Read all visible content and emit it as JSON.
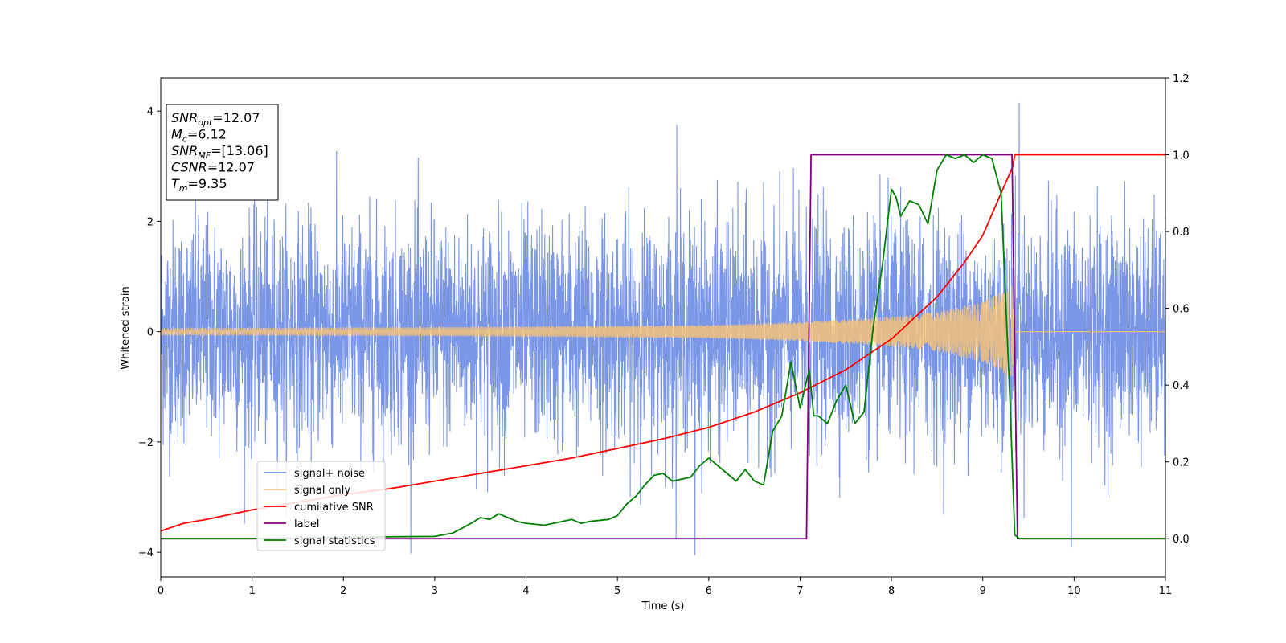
{
  "chart_data": {
    "type": "line",
    "xlabel": "Time (s)",
    "ylabel_left": "Whitened strain",
    "ylabel_right": "",
    "xlim": [
      0,
      11
    ],
    "ylim_left": [
      -4.45,
      4.6
    ],
    "ylim_right": [
      -0.1,
      1.2
    ],
    "x_ticks": [
      0,
      1,
      2,
      3,
      4,
      5,
      6,
      7,
      8,
      9,
      10,
      11
    ],
    "y_ticks_left": [
      -4,
      -2,
      0,
      2,
      4
    ],
    "y_ticks_right": [
      0.0,
      0.2,
      0.4,
      0.6,
      0.8,
      1.0,
      1.2
    ],
    "grid": false,
    "legend_position": "lower-left",
    "annotation_box": {
      "position": "top-left",
      "lines": [
        {
          "symbol": "SNR",
          "sub": "opt",
          "value": "=12.07"
        },
        {
          "symbol": "M",
          "sub": "c",
          "value": "=6.12"
        },
        {
          "symbol": "SNR",
          "sub": "MF",
          "value": "=[13.06]"
        },
        {
          "symbol": "CSNR",
          "sub": "",
          "value": "=12.07"
        },
        {
          "symbol": "T",
          "sub": "m",
          "value": "=9.35"
        }
      ]
    },
    "series": [
      {
        "name": "signal+ noise",
        "color": "#7390e6",
        "axis": "left",
        "kind": "noise",
        "std": 1.0,
        "peak_values": [
          {
            "x": 5.65,
            "y": 3.75
          },
          {
            "x": 5.85,
            "y": -4.05
          },
          {
            "x": 9.4,
            "y": 4.15
          },
          {
            "x": 9.97,
            "y": -3.9
          }
        ]
      },
      {
        "name": "signal only",
        "color": "#f5c27a",
        "axis": "left",
        "kind": "chirp",
        "amplitude_envelope": [
          [
            0,
            0.06
          ],
          [
            3,
            0.08
          ],
          [
            6,
            0.12
          ],
          [
            7,
            0.17
          ],
          [
            8,
            0.27
          ],
          [
            8.5,
            0.36
          ],
          [
            9,
            0.55
          ],
          [
            9.35,
            0.85
          ]
        ],
        "end_time": 9.35
      },
      {
        "name": "cumilative SNR",
        "color": "#ff0000",
        "axis": "right",
        "x": [
          0,
          0.25,
          0.5,
          1,
          1.5,
          2,
          2.5,
          3,
          3.5,
          4,
          4.5,
          5,
          5.5,
          6,
          6.5,
          7,
          7.5,
          8,
          8.5,
          8.8,
          9.0,
          9.2,
          9.33,
          9.35,
          11
        ],
        "y": [
          0.02,
          0.04,
          0.05,
          0.075,
          0.095,
          0.115,
          0.13,
          0.15,
          0.17,
          0.19,
          0.21,
          0.235,
          0.26,
          0.29,
          0.33,
          0.38,
          0.44,
          0.52,
          0.63,
          0.72,
          0.79,
          0.9,
          0.97,
          1.0,
          1.0
        ]
      },
      {
        "name": "label",
        "color": "#800080",
        "axis": "right",
        "x": [
          0,
          7.07,
          7.12,
          9.32,
          9.38,
          11
        ],
        "y": [
          0,
          0,
          1,
          1,
          0,
          0
        ]
      },
      {
        "name": "signal statistics",
        "color": "#008000",
        "axis": "right",
        "x": [
          0,
          0.5,
          1,
          1.5,
          2,
          2.5,
          3,
          3.2,
          3.4,
          3.5,
          3.6,
          3.7,
          3.8,
          3.9,
          4.0,
          4.2,
          4.4,
          4.5,
          4.6,
          4.7,
          4.9,
          5.0,
          5.1,
          5.2,
          5.3,
          5.4,
          5.5,
          5.6,
          5.7,
          5.8,
          5.9,
          6.0,
          6.1,
          6.2,
          6.3,
          6.4,
          6.5,
          6.6,
          6.7,
          6.8,
          6.9,
          7.0,
          7.1,
          7.15,
          7.2,
          7.3,
          7.4,
          7.5,
          7.6,
          7.7,
          7.8,
          7.9,
          8.0,
          8.05,
          8.1,
          8.2,
          8.3,
          8.4,
          8.5,
          8.6,
          8.7,
          8.8,
          8.9,
          9.0,
          9.1,
          9.2,
          9.3,
          9.35,
          9.4,
          9.5,
          10,
          11
        ],
        "y": [
          0,
          0,
          0,
          0.002,
          0.003,
          0.005,
          0.006,
          0.015,
          0.04,
          0.055,
          0.05,
          0.065,
          0.055,
          0.045,
          0.04,
          0.035,
          0.045,
          0.05,
          0.04,
          0.045,
          0.05,
          0.06,
          0.09,
          0.11,
          0.14,
          0.165,
          0.17,
          0.15,
          0.155,
          0.16,
          0.19,
          0.21,
          0.19,
          0.17,
          0.15,
          0.18,
          0.15,
          0.14,
          0.28,
          0.32,
          0.46,
          0.34,
          0.44,
          0.32,
          0.32,
          0.3,
          0.36,
          0.4,
          0.3,
          0.33,
          0.55,
          0.71,
          0.91,
          0.89,
          0.84,
          0.88,
          0.87,
          0.82,
          0.96,
          1.0,
          0.99,
          1.0,
          0.98,
          1.0,
          0.99,
          0.9,
          0.35,
          0.01,
          0.0,
          0.0,
          0.0,
          0.0
        ]
      }
    ]
  }
}
